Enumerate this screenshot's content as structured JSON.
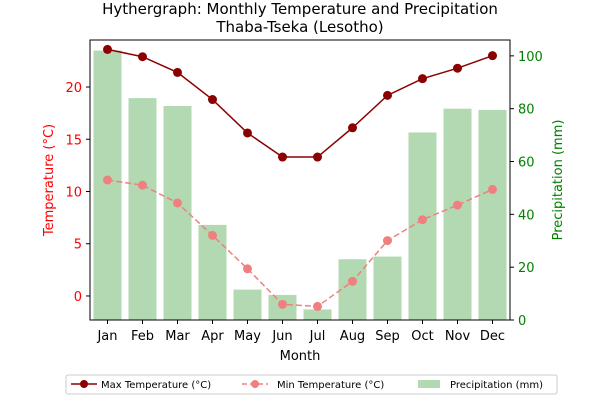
{
  "chart_data": {
    "type": "bar+line",
    "title": "Hythergraph: Monthly Temperature and Precipitation",
    "subtitle": "Thaba-Tseka (Lesotho)",
    "xlabel": "Month",
    "ylabel_left": "Temperature (°C)",
    "ylabel_right": "Precipitation (mm)",
    "categories": [
      "Jan",
      "Feb",
      "Mar",
      "Apr",
      "May",
      "Jun",
      "Jul",
      "Aug",
      "Sep",
      "Oct",
      "Nov",
      "Dec"
    ],
    "ylim_left": [
      -2.3,
      24.5
    ],
    "ylim_right": [
      0,
      106
    ],
    "yticks_left": [
      0,
      5,
      10,
      15,
      20
    ],
    "yticks_right": [
      0,
      20,
      40,
      60,
      80,
      100
    ],
    "series": [
      {
        "name": "Max Temperature (°C)",
        "axis": "left",
        "type": "line",
        "color": "#8b0000",
        "values": [
          23.6,
          22.9,
          21.4,
          18.8,
          15.6,
          13.3,
          13.3,
          16.1,
          19.2,
          20.8,
          21.8,
          23.0
        ]
      },
      {
        "name": "Min Temperature (°C)",
        "axis": "left",
        "type": "line",
        "color": "#f08080",
        "values": [
          11.1,
          10.6,
          8.9,
          5.8,
          2.6,
          -0.8,
          -1.0,
          1.4,
          5.3,
          7.3,
          8.7,
          10.2
        ]
      },
      {
        "name": "Precipitation (mm)",
        "axis": "right",
        "type": "bar",
        "color": "#b2d9b2",
        "values": [
          102,
          84,
          81,
          36,
          11.5,
          9.5,
          4,
          23,
          24,
          71,
          80,
          79.5
        ]
      }
    ],
    "legend_position": "bottom",
    "grid": false
  },
  "colors": {
    "left_axis": "#ff0000",
    "right_axis": "#008000"
  }
}
